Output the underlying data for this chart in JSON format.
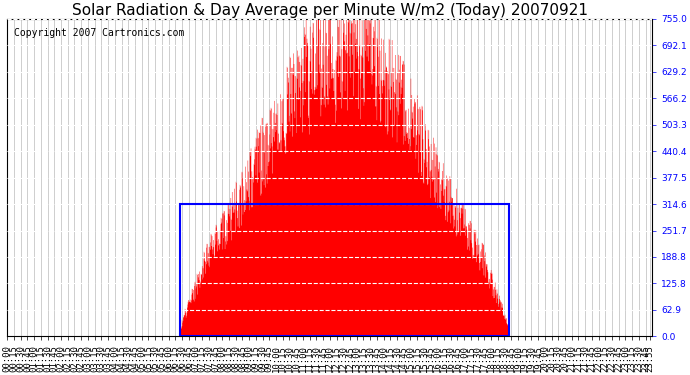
{
  "title": "Solar Radiation & Day Average per Minute W/m2 (Today) 20070921",
  "copyright": "Copyright 2007 Cartronics.com",
  "background_color": "#ffffff",
  "y_ticks": [
    0.0,
    62.9,
    125.8,
    188.8,
    251.7,
    314.6,
    377.5,
    440.4,
    503.3,
    566.2,
    629.2,
    692.1,
    755.0
  ],
  "y_max": 755.0,
  "y_min": 0.0,
  "bar_color": "#ff0000",
  "avg_box_color": "#0000ff",
  "avg_value": 314.6,
  "sunrise_min": 385,
  "sunset_min": 1120,
  "grid_color": "#aaaaaa",
  "title_fontsize": 11,
  "copyright_fontsize": 7,
  "tick_fontsize": 6.5,
  "x_label_every_min": 15
}
